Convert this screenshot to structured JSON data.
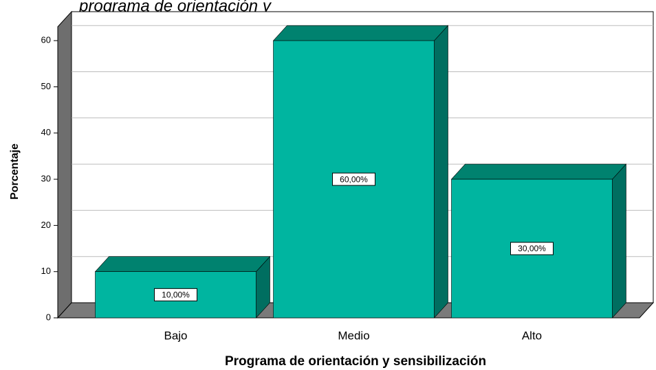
{
  "chart_data": {
    "type": "bar3d",
    "title": "programa de orientación y",
    "x_label": "Programa de orientación y sensibilización",
    "y_label": "Porcentaje",
    "categories": [
      "Bajo",
      "Medio",
      "Alto"
    ],
    "values": [
      10,
      60,
      30
    ],
    "value_labels": [
      "10,00%",
      "60,00%",
      "30,00%"
    ],
    "color": "#00b5a0",
    "ylim": [
      0,
      63
    ],
    "yticks": [
      0,
      10,
      20,
      30,
      40,
      50,
      60
    ],
    "grid": true
  }
}
